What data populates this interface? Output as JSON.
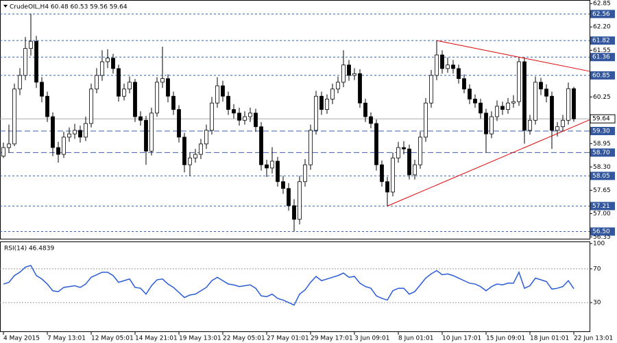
{
  "chart_data": {
    "type": "candlestick",
    "title": "CrudeOIL,H4  60.48 60.53 59.56 59.64",
    "categories": [
      "4 May 2015",
      null,
      null,
      null,
      null,
      null,
      null,
      null,
      "7 May 13:01",
      null,
      null,
      null,
      null,
      null,
      null,
      null,
      "12 May 05:01",
      null,
      null,
      null,
      null,
      null,
      null,
      null,
      "14 May 21:01",
      null,
      null,
      null,
      null,
      null,
      null,
      null,
      "19 May 13:01",
      null,
      null,
      null,
      null,
      null,
      null,
      null,
      "22 May 05:01",
      null,
      null,
      null,
      null,
      null,
      null,
      null,
      "27 May 01:01",
      null,
      null,
      null,
      null,
      null,
      null,
      null,
      "29 May 17:01",
      null,
      null,
      null,
      null,
      null,
      null,
      null,
      "3 Jun 09:01",
      null,
      null,
      null,
      null,
      null,
      null,
      null,
      "8 Jun 01:01",
      null,
      null,
      null,
      null,
      null,
      null,
      null,
      "10 Jun 17:01",
      null,
      null,
      null,
      null,
      null,
      null,
      null,
      "15 Jun 09:01",
      null,
      null,
      null,
      null,
      null,
      null,
      null,
      "18 Jun 01:01",
      null,
      null,
      null,
      null,
      null,
      null,
      null,
      "22 Jun 13:01"
    ],
    "ohlc": [
      [
        58.6,
        58.98,
        58.55,
        58.84
      ],
      [
        58.84,
        59.48,
        58.7,
        58.94
      ],
      [
        58.94,
        60.62,
        58.88,
        60.47
      ],
      [
        60.47,
        61.05,
        60.3,
        60.85
      ],
      [
        60.85,
        61.92,
        60.72,
        61.6
      ],
      [
        61.6,
        62.57,
        61.4,
        61.8
      ],
      [
        61.8,
        61.95,
        60.5,
        60.66
      ],
      [
        60.66,
        60.8,
        60.1,
        60.27
      ],
      [
        60.27,
        60.4,
        59.55,
        59.7
      ],
      [
        59.7,
        59.82,
        58.6,
        58.84
      ],
      [
        58.84,
        59.0,
        58.42,
        58.65
      ],
      [
        58.65,
        59.28,
        58.55,
        59.13
      ],
      [
        59.13,
        59.4,
        59.0,
        59.22
      ],
      [
        59.22,
        59.5,
        59.08,
        59.32
      ],
      [
        59.32,
        59.45,
        58.98,
        59.13
      ],
      [
        59.13,
        59.7,
        59.02,
        59.51
      ],
      [
        59.51,
        60.62,
        59.4,
        60.47
      ],
      [
        60.47,
        61.05,
        60.35,
        60.85
      ],
      [
        60.85,
        61.55,
        60.7,
        61.23
      ],
      [
        61.23,
        61.58,
        61.05,
        61.33
      ],
      [
        61.33,
        61.45,
        60.9,
        61.04
      ],
      [
        61.04,
        61.15,
        60.12,
        60.27
      ],
      [
        60.27,
        60.62,
        60.15,
        60.47
      ],
      [
        60.47,
        60.82,
        60.35,
        60.66
      ],
      [
        60.66,
        60.75,
        59.55,
        59.7
      ],
      [
        59.7,
        59.85,
        59.45,
        59.6
      ],
      [
        59.6,
        59.72,
        58.36,
        58.74
      ],
      [
        58.74,
        59.95,
        58.62,
        59.8
      ],
      [
        59.8,
        60.8,
        59.7,
        60.66
      ],
      [
        60.66,
        61.65,
        60.5,
        60.76
      ],
      [
        60.76,
        60.88,
        60.1,
        60.27
      ],
      [
        60.27,
        60.4,
        59.75,
        59.9
      ],
      [
        59.9,
        60.02,
        58.98,
        59.13
      ],
      [
        59.13,
        59.25,
        58.15,
        58.36
      ],
      [
        58.36,
        58.7,
        58.05,
        58.55
      ],
      [
        58.55,
        58.8,
        58.42,
        58.65
      ],
      [
        58.65,
        59.08,
        58.52,
        58.94
      ],
      [
        58.94,
        59.48,
        58.8,
        59.32
      ],
      [
        59.32,
        60.25,
        59.2,
        60.08
      ],
      [
        60.08,
        60.8,
        59.95,
        60.56
      ],
      [
        60.56,
        60.7,
        60.12,
        60.27
      ],
      [
        60.27,
        60.4,
        59.75,
        59.9
      ],
      [
        59.9,
        60.05,
        59.65,
        59.8
      ],
      [
        59.8,
        59.95,
        59.45,
        59.6
      ],
      [
        59.6,
        59.85,
        59.48,
        59.7
      ],
      [
        59.7,
        59.95,
        59.55,
        59.8
      ],
      [
        59.8,
        59.92,
        59.28,
        59.42
      ],
      [
        59.42,
        59.55,
        58.2,
        58.36
      ],
      [
        58.36,
        58.5,
        58.02,
        58.27
      ],
      [
        58.27,
        58.85,
        58.12,
        58.46
      ],
      [
        58.46,
        58.58,
        57.75,
        57.89
      ],
      [
        57.89,
        58.05,
        57.55,
        57.7
      ],
      [
        57.7,
        57.85,
        57.08,
        57.22
      ],
      [
        57.22,
        57.4,
        56.5,
        56.84
      ],
      [
        56.84,
        58.05,
        56.7,
        57.89
      ],
      [
        57.89,
        58.52,
        57.75,
        58.36
      ],
      [
        58.36,
        59.48,
        58.22,
        59.32
      ],
      [
        59.32,
        60.42,
        59.2,
        60.27
      ],
      [
        60.27,
        60.4,
        59.75,
        59.9
      ],
      [
        59.9,
        60.32,
        59.78,
        60.19
      ],
      [
        60.19,
        60.62,
        60.05,
        60.47
      ],
      [
        60.47,
        60.82,
        60.35,
        60.66
      ],
      [
        60.66,
        61.55,
        60.52,
        61.14
      ],
      [
        61.14,
        61.28,
        60.7,
        60.85
      ],
      [
        60.85,
        61.05,
        60.72,
        60.9
      ],
      [
        60.9,
        61.02,
        59.95,
        60.08
      ],
      [
        60.08,
        60.2,
        59.55,
        59.7
      ],
      [
        59.7,
        59.82,
        59.38,
        59.51
      ],
      [
        59.51,
        59.62,
        58.2,
        58.36
      ],
      [
        58.36,
        58.48,
        57.75,
        57.89
      ],
      [
        57.89,
        58.02,
        57.21,
        57.6
      ],
      [
        57.6,
        58.7,
        57.48,
        58.55
      ],
      [
        58.55,
        59.0,
        58.42,
        58.84
      ],
      [
        58.84,
        59.02,
        58.65,
        58.8
      ],
      [
        58.8,
        58.92,
        57.95,
        58.08
      ],
      [
        58.08,
        58.5,
        57.95,
        58.36
      ],
      [
        58.36,
        59.28,
        58.25,
        59.13
      ],
      [
        59.13,
        60.22,
        59.0,
        60.08
      ],
      [
        60.08,
        61.0,
        59.95,
        60.85
      ],
      [
        60.85,
        61.82,
        60.72,
        61.42
      ],
      [
        61.42,
        61.55,
        60.9,
        61.04
      ],
      [
        61.04,
        61.35,
        60.92,
        61.14
      ],
      [
        61.14,
        61.28,
        60.9,
        61.04
      ],
      [
        61.04,
        61.15,
        60.62,
        60.76
      ],
      [
        60.76,
        60.88,
        60.35,
        60.47
      ],
      [
        60.47,
        60.6,
        60.05,
        60.19
      ],
      [
        60.19,
        60.32,
        59.95,
        60.08
      ],
      [
        60.08,
        60.2,
        59.65,
        59.8
      ],
      [
        59.8,
        59.92,
        58.7,
        59.22
      ],
      [
        59.22,
        59.85,
        59.1,
        59.7
      ],
      [
        59.7,
        60.15,
        59.58,
        59.99
      ],
      [
        59.99,
        60.12,
        59.75,
        59.9
      ],
      [
        59.9,
        60.22,
        59.78,
        60.08
      ],
      [
        60.08,
        60.3,
        59.95,
        60.12
      ],
      [
        60.12,
        61.36,
        60.0,
        61.23
      ],
      [
        61.23,
        61.35,
        58.95,
        59.32
      ],
      [
        59.32,
        59.75,
        59.2,
        59.6
      ],
      [
        59.6,
        60.82,
        59.48,
        60.66
      ],
      [
        60.66,
        60.78,
        60.3,
        60.47
      ],
      [
        60.47,
        60.6,
        60.1,
        60.27
      ],
      [
        60.27,
        60.4,
        58.8,
        59.32
      ],
      [
        59.32,
        59.55,
        59.15,
        59.42
      ],
      [
        59.42,
        59.75,
        59.3,
        59.6
      ],
      [
        59.6,
        60.65,
        59.48,
        60.48
      ],
      [
        60.48,
        60.53,
        59.56,
        59.64
      ]
    ],
    "ylim": [
      56.3,
      62.95
    ],
    "yticks": [
      62.85,
      {
        "value": 62.2,
        "label": "62.20"
      },
      61.55,
      60.25,
      58.95,
      {
        "value": 58.3,
        "label": "58.30"
      },
      57.65,
      {
        "value": 57,
        "label": "57.00"
      },
      56.35
    ],
    "levels": [
      62.56,
      61.82,
      61.36,
      60.85,
      {
        "value": 59.3,
        "label": "59.30"
      },
      {
        "value": 58.7,
        "label": "58.70"
      },
      58.05,
      57.21,
      {
        "value": 56.5,
        "label": "56.50"
      }
    ],
    "last_price": 59.64,
    "trendlines": [
      {
        "color": "#e00000",
        "points": [
          [
            70,
            57.21
          ],
          [
            107,
            59.62
          ]
        ]
      },
      {
        "color": "#e00000",
        "points": [
          [
            79,
            61.82
          ],
          [
            107,
            60.96
          ]
        ]
      }
    ],
    "rsi": {
      "title": "RSI(14) 46.4839",
      "color": "#2a5bd7",
      "ylim": [
        0,
        100
      ],
      "yticks": [
        100,
        70,
        30
      ],
      "levels": [
        70,
        30
      ],
      "values": [
        52,
        54,
        62,
        66,
        72,
        74,
        62,
        58,
        52,
        44,
        43,
        48,
        49,
        50,
        48,
        52,
        60,
        63,
        66,
        66,
        62,
        54,
        56,
        58,
        48,
        47,
        40,
        50,
        57,
        58,
        52,
        48,
        42,
        36,
        39,
        40,
        44,
        48,
        56,
        60,
        56,
        52,
        51,
        49,
        50,
        51,
        47,
        38,
        37,
        40,
        35,
        33,
        30,
        27,
        40,
        45,
        54,
        61,
        56,
        58,
        60,
        62,
        65,
        60,
        61,
        53,
        49,
        47,
        38,
        35,
        33,
        44,
        47,
        47,
        40,
        43,
        51,
        59,
        64,
        68,
        63,
        64,
        62,
        59,
        56,
        53,
        52,
        49,
        44,
        49,
        52,
        51,
        53,
        53,
        66,
        47,
        50,
        59,
        57,
        55,
        46,
        47,
        49,
        56,
        46.48
      ]
    }
  }
}
